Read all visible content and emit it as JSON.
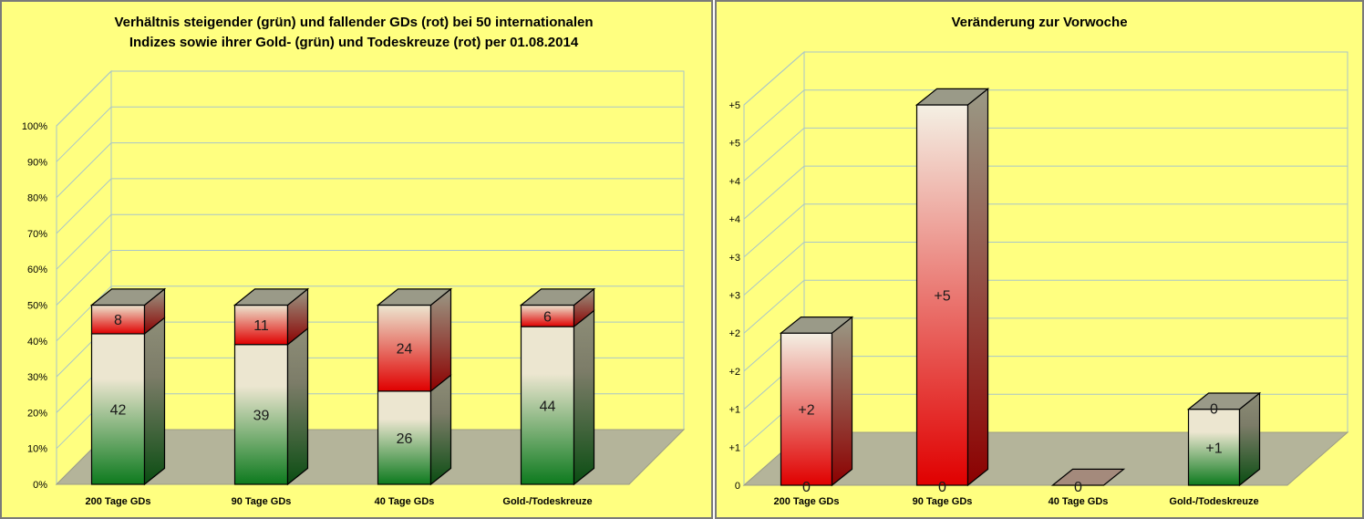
{
  "chart_data": [
    {
      "type": "bar",
      "stacked": true,
      "percent_scale": true,
      "title_lines": [
        "Verhältnis steigender (grün) und fallender GDs (rot) bei  50 internationalen",
        "Indizes sowie ihrer Gold- (grün) und Todeskreuze (rot) per 01.08.2014"
      ],
      "categories": [
        "200 Tage GDs",
        "90 Tage GDs",
        "40 Tage GDs",
        "Gold-/Todeskreuze"
      ],
      "series": [
        {
          "name": "grün",
          "values": [
            42,
            39,
            26,
            44
          ],
          "color": "#1e8a2e"
        },
        {
          "name": "rot",
          "values": [
            8,
            11,
            24,
            6
          ],
          "color": "#e00000"
        }
      ],
      "data_labels": [
        [
          "42",
          "39",
          "26",
          "44"
        ],
        [
          "8",
          "11",
          "24",
          "6"
        ]
      ],
      "ylim": [
        0,
        100
      ],
      "yticks": [
        0,
        10,
        20,
        30,
        40,
        50,
        60,
        70,
        80,
        90,
        100
      ],
      "ytick_labels": [
        "0%",
        "10%",
        "20%",
        "30%",
        "40%",
        "50%",
        "60%",
        "70%",
        "80%",
        "90%",
        "100%"
      ],
      "grid": true
    },
    {
      "type": "bar",
      "stacked": true,
      "title": "Veränderung zur Vorwoche",
      "categories": [
        "200 Tage GDs",
        "90 Tage GDs",
        "40 Tage GDs",
        "Gold-/Todeskreuze"
      ],
      "series": [
        {
          "name": "grün",
          "values": [
            0,
            0,
            0,
            1
          ],
          "labels": [
            "0",
            "0",
            "0",
            "+1"
          ],
          "color": "#1e8a2e"
        },
        {
          "name": "rot",
          "values": [
            2,
            5,
            0,
            0
          ],
          "labels": [
            "+2",
            "+5",
            "",
            "0"
          ],
          "color": "#e00000"
        }
      ],
      "ylim": [
        0,
        5
      ],
      "yticks": [
        0,
        0.5,
        1,
        1.5,
        2,
        2.5,
        3,
        3.5,
        4,
        4.5,
        5
      ],
      "ytick_labels": [
        "0",
        "+1",
        "+1",
        "+2",
        "+2",
        "+3",
        "+3",
        "+4",
        "+4",
        "+5",
        "+5"
      ],
      "grid": true
    }
  ],
  "colors": {
    "panel_background": "#ffff80",
    "panel_border": "#7a7a7a",
    "floor": "#b4b49a",
    "gridline": "#a9c6c8",
    "green_dark": "#0d7a1e",
    "red": "#e00000",
    "cream": "#ece6d0"
  }
}
